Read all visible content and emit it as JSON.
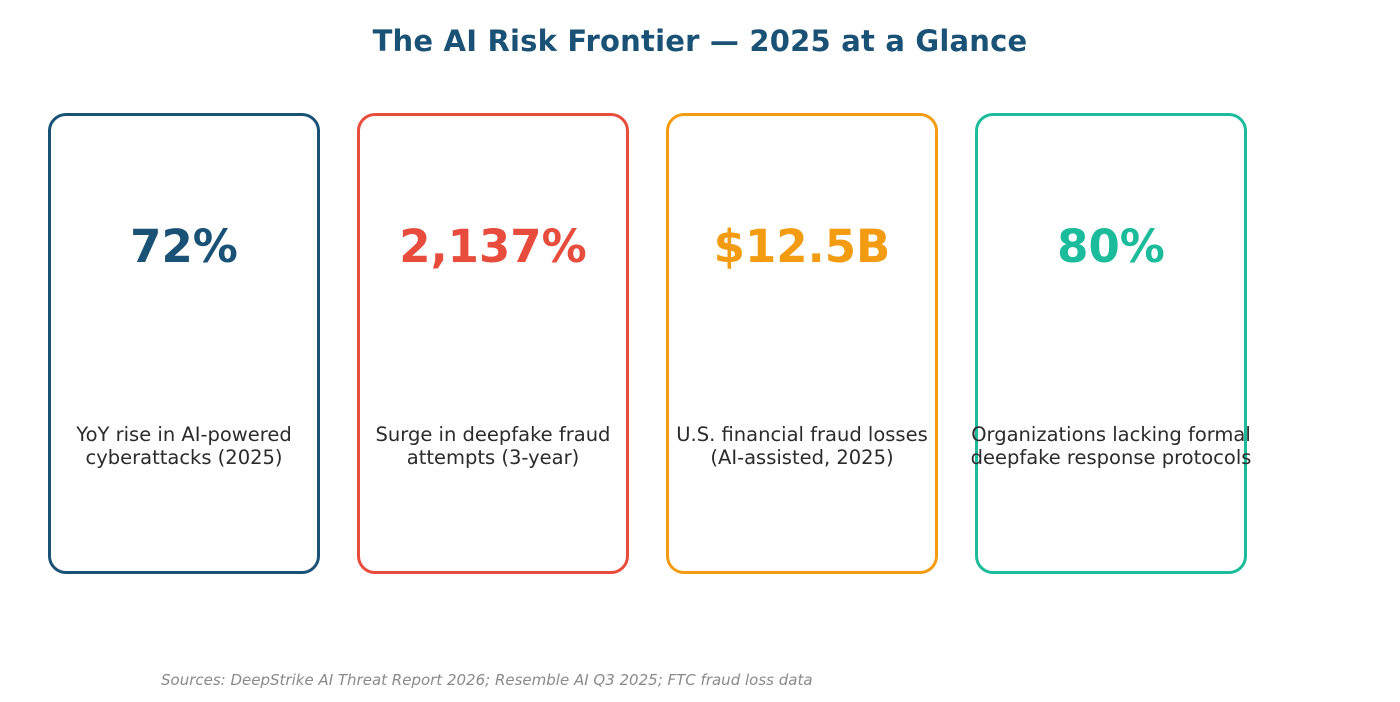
{
  "title": "The AI Risk Frontier — 2025 at a Glance",
  "cards": [
    {
      "value": "72%",
      "description": "YoY rise in AI-powered\ncyberattacks (2025)",
      "color": "#1a5276"
    },
    {
      "value": "2,137%",
      "description": "Surge in deepfake fraud\nattempts (3-year)",
      "color": "#e74c3c"
    },
    {
      "value": "$12.5B",
      "description": "U.S. financial fraud losses\n(AI-assisted, 2025)",
      "color": "#f39c12"
    },
    {
      "value": "80%",
      "description": "Organizations lacking formal\ndeepfake response protocols",
      "color": "#1abc9c"
    }
  ],
  "source": "Sources: DeepStrike AI Threat Report 2026; Resemble AI Q3 2025; FTC fraud loss data"
}
